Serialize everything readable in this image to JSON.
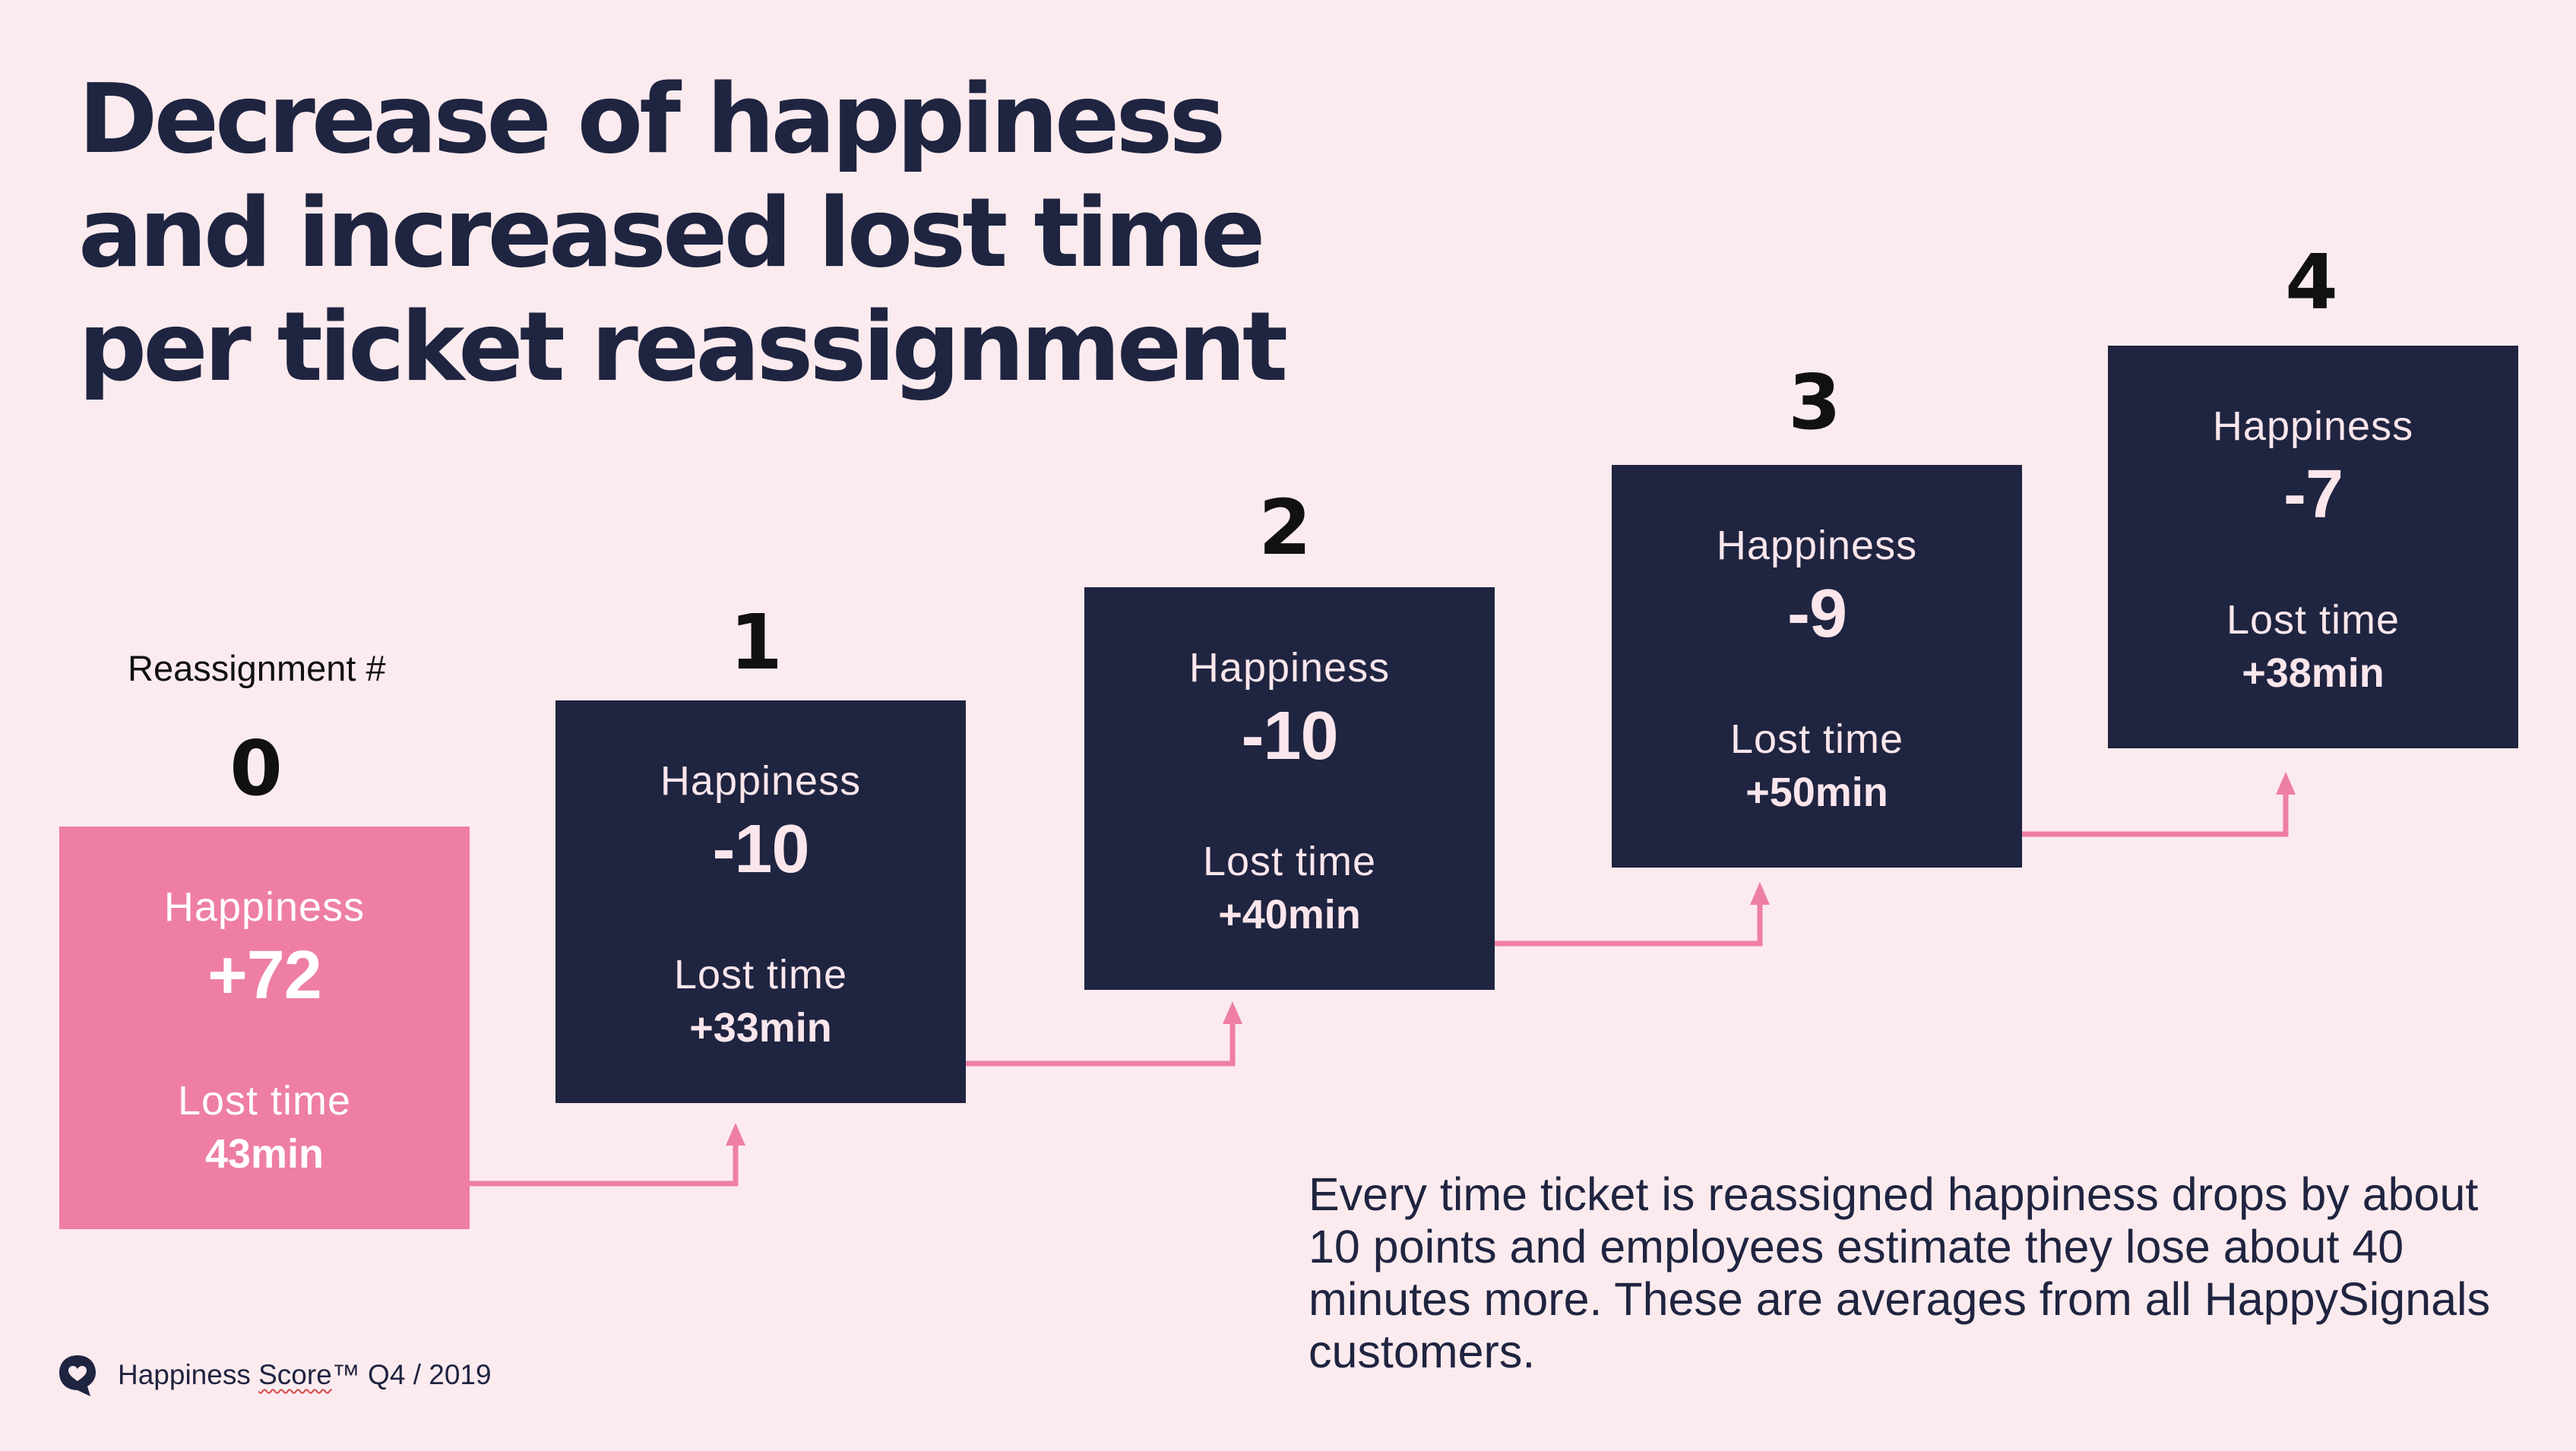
{
  "title_lines": [
    "Decrease of happiness",
    "and increased lost time",
    "per ticket reassignment"
  ],
  "reassignment_label": "Reassignment #",
  "steps": [
    {
      "number": "0",
      "happiness_label": "Happiness",
      "happiness_value": "+72",
      "lost_label": "Lost time",
      "lost_value": "43min"
    },
    {
      "number": "1",
      "happiness_label": "Happiness",
      "happiness_value": "-10",
      "lost_label": "Lost time",
      "lost_value": "+33min"
    },
    {
      "number": "2",
      "happiness_label": "Happiness",
      "happiness_value": "-10",
      "lost_label": "Lost time",
      "lost_value": "+40min"
    },
    {
      "number": "3",
      "happiness_label": "Happiness",
      "happiness_value": "-9",
      "lost_label": "Lost time",
      "lost_value": "+50min"
    },
    {
      "number": "4",
      "happiness_label": "Happiness",
      "happiness_value": "-7",
      "lost_label": "Lost time",
      "lost_value": "+38min"
    }
  ],
  "note": "Every time ticket is reassigned happiness drops by about 10 points and employees estimate they lose about 40 minutes more. These are averages from all HappySignals customers.",
  "footer": {
    "brand": "Happiness",
    "score_word": "Score",
    "trademark": "™ Q4 / 2019",
    "logo_icon": "heart-speech-bubble-icon"
  },
  "colors": {
    "background": "#fcebee",
    "navy": "#1f2440",
    "pink": "#ee7ea4",
    "arrow": "#ee7ea4"
  }
}
